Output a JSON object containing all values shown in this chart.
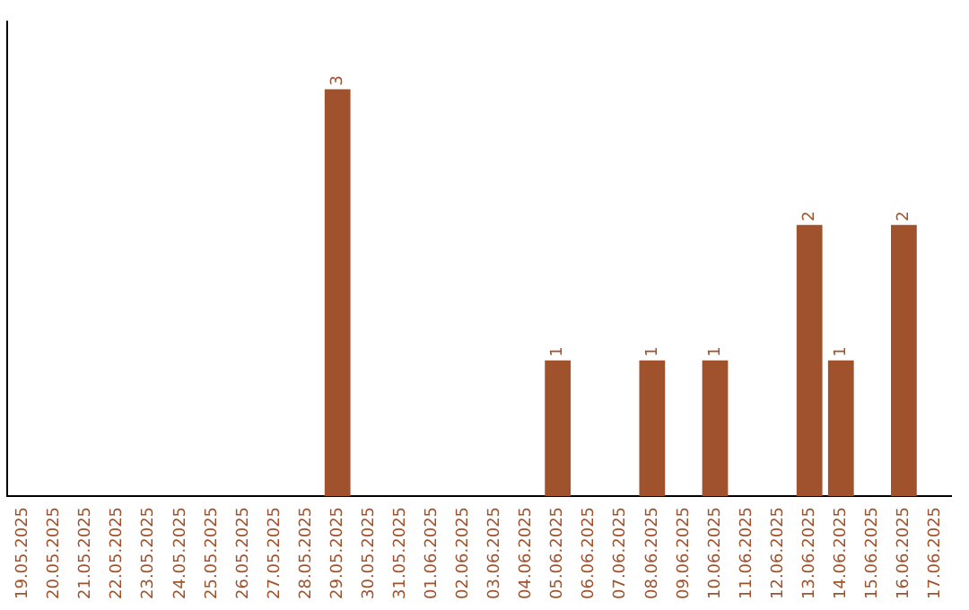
{
  "chart_data": {
    "type": "bar",
    "categories": [
      "19.05.2025",
      "20.05.2025",
      "21.05.2025",
      "22.05.2025",
      "23.05.2025",
      "24.05.2025",
      "25.05.2025",
      "26.05.2025",
      "27.05.2025",
      "28.05.2025",
      "29.05.2025",
      "30.05.2025",
      "31.05.2025",
      "01.06.2025",
      "02.06.2025",
      "03.06.2025",
      "04.06.2025",
      "05.06.2025",
      "06.06.2025",
      "07.06.2025",
      "08.06.2025",
      "09.06.2025",
      "10.06.2025",
      "11.06.2025",
      "12.06.2025",
      "13.06.2025",
      "14.06.2025",
      "15.06.2025",
      "16.06.2025",
      "17.06.2025"
    ],
    "values": [
      0,
      0,
      0,
      0,
      0,
      0,
      0,
      0,
      0,
      0,
      3,
      0,
      0,
      0,
      0,
      0,
      0,
      1,
      0,
      0,
      1,
      0,
      1,
      0,
      0,
      2,
      1,
      0,
      2,
      0
    ],
    "value_labels": [
      null,
      null,
      null,
      null,
      null,
      null,
      null,
      null,
      null,
      null,
      "3",
      null,
      null,
      null,
      null,
      null,
      null,
      "1",
      null,
      null,
      "1",
      null,
      "1",
      null,
      null,
      "2",
      "1",
      null,
      "2",
      null
    ],
    "color": "#a0522d",
    "grid": false,
    "legend": false,
    "tick_labels": "x"
  }
}
